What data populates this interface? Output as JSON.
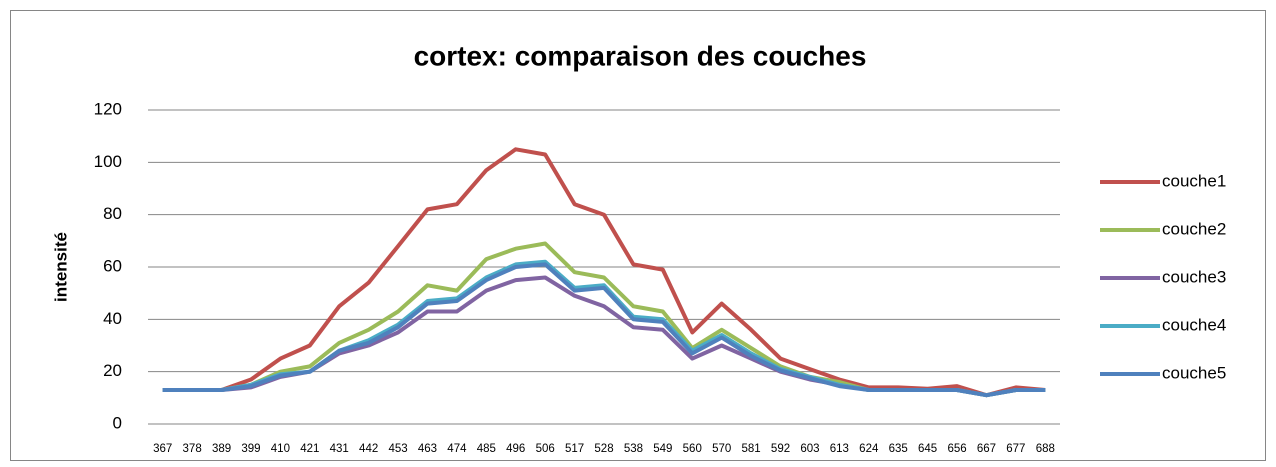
{
  "chart_data": {
    "type": "line",
    "title": "cortex: comparaison des couches",
    "y_label": "intensité",
    "categories": [
      "367",
      "378",
      "389",
      "399",
      "410",
      "421",
      "431",
      "442",
      "453",
      "463",
      "474",
      "485",
      "496",
      "506",
      "517",
      "528",
      "538",
      "549",
      "560",
      "570",
      "581",
      "592",
      "603",
      "613",
      "624",
      "635",
      "645",
      "656",
      "667",
      "677",
      "688"
    ],
    "series": [
      {
        "name": "couche1",
        "color": "#c0504d",
        "values": [
          13,
          13,
          13,
          17,
          25,
          30,
          45,
          54,
          68,
          82,
          84,
          97,
          105,
          103,
          84,
          80,
          61,
          59,
          35,
          46,
          36,
          25,
          21,
          17,
          14,
          14,
          13.5,
          14.5,
          11,
          14,
          13
        ]
      },
      {
        "name": "couche2",
        "color": "#9bbb59",
        "values": [
          13,
          13,
          13,
          15,
          20,
          22,
          31,
          36,
          43,
          53,
          51,
          63,
          67,
          69,
          58,
          56,
          45,
          43,
          29,
          36,
          29,
          22,
          18,
          16,
          13,
          13,
          13,
          13,
          11,
          13,
          13
        ]
      },
      {
        "name": "couche3",
        "color": "#8064a2",
        "values": [
          13,
          13,
          13,
          14,
          18,
          20,
          27,
          30,
          35,
          43,
          43,
          51,
          55,
          56,
          49,
          45,
          37,
          36,
          25,
          30,
          25,
          20,
          17,
          15,
          13,
          13,
          13,
          13,
          11,
          13,
          13
        ]
      },
      {
        "name": "couche4",
        "color": "#4bacc6",
        "values": [
          13,
          13,
          13,
          15,
          19,
          20,
          28,
          32,
          38,
          47,
          48,
          56,
          61,
          62,
          52,
          53,
          41,
          40,
          28,
          34,
          27,
          21,
          18,
          15,
          13,
          13,
          13,
          13,
          11,
          13,
          13
        ]
      },
      {
        "name": "couche5",
        "color": "#4f81bd",
        "values": [
          13,
          13,
          13,
          14.5,
          18.5,
          20,
          28,
          31,
          37,
          46,
          47,
          55,
          60,
          61,
          51,
          52,
          40,
          39,
          27,
          33,
          26,
          20.5,
          17.5,
          14.5,
          13,
          13,
          13,
          13,
          11,
          13,
          13
        ]
      }
    ],
    "ylim": [
      0,
      120
    ],
    "yticks": [
      0,
      20,
      40,
      60,
      80,
      100,
      120
    ],
    "grid": true,
    "legend": "right"
  }
}
